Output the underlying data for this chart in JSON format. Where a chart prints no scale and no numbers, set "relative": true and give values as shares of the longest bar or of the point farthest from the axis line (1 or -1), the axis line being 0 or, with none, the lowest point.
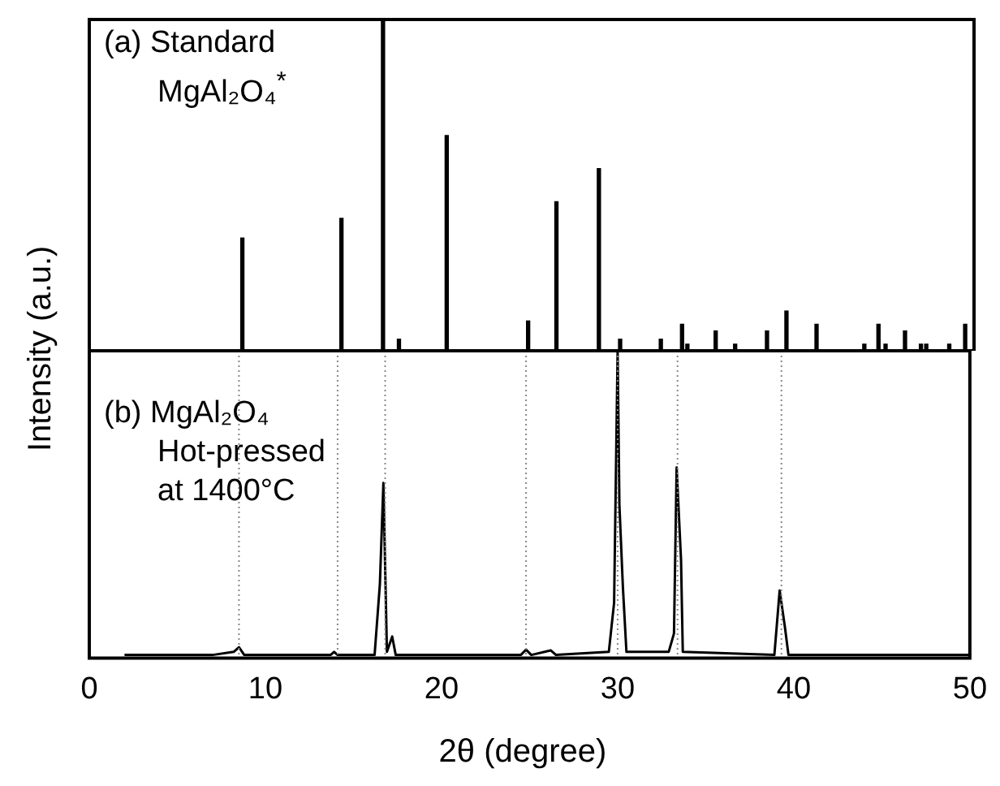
{
  "chart_data": [
    {
      "type": "bar",
      "relative": true,
      "xlim": [
        0,
        50
      ],
      "tick_labels": false,
      "grid": false,
      "legend": false,
      "ylabel": "Intensity (a.u.)",
      "color": "#000000",
      "annotations": [
        "(a) Standard",
        "MgAl₂O₄$^{*}$"
      ],
      "x": [
        8.65,
        14.25,
        16.6,
        17.5,
        20.2,
        24.8,
        26.4,
        28.8,
        30.0,
        32.3,
        33.5,
        33.8,
        35.4,
        36.5,
        38.3,
        39.4,
        41.1,
        43.8,
        44.6,
        45.0,
        46.1,
        47.0,
        47.3,
        48.6,
        49.5
      ],
      "values": [
        0.34,
        0.4,
        1,
        0.035,
        0.65,
        0.09,
        0.45,
        0.55,
        0.035,
        0.035,
        0.08,
        0.02,
        0.06,
        0.02,
        0.06,
        0.12,
        0.08,
        0.02,
        0.08,
        0.02,
        0.06,
        0.02,
        0.02,
        0.02,
        0.08
      ]
    },
    {
      "type": "line",
      "relative": true,
      "xlim": [
        0,
        50
      ],
      "xticks": [
        0,
        10,
        20,
        30,
        40,
        50
      ],
      "tick_labels": "x",
      "grid": false,
      "legend": false,
      "xlabel": "2θ (degree)",
      "color": "#000000",
      "marker": "none",
      "line_style": "solid",
      "annotations": [
        "(b) MgAl₂O₄",
        "Hot-pressed",
        "at 1400°C"
      ],
      "ref_lines": [
        {
          "axis": "x",
          "value": 8.5,
          "label": null,
          "color": "#888888",
          "line_style": "dotted"
        },
        {
          "axis": "x",
          "value": 14.1,
          "label": null,
          "color": "#888888",
          "line_style": "dotted"
        },
        {
          "axis": "x",
          "value": 16.8,
          "label": null,
          "color": "#888888",
          "line_style": "dotted"
        },
        {
          "axis": "x",
          "value": 24.8,
          "label": null,
          "color": "#888888",
          "line_style": "dotted"
        },
        {
          "axis": "x",
          "value": 30.0,
          "label": null,
          "color": "#888888",
          "line_style": "dotted"
        },
        {
          "axis": "x",
          "value": 33.4,
          "label": null,
          "color": "#888888",
          "line_style": "dotted"
        },
        {
          "axis": "x",
          "value": 39.3,
          "label": null,
          "color": "#888888",
          "line_style": "dotted"
        }
      ],
      "x": [
        2,
        7,
        8.2,
        8.5,
        8.8,
        13.7,
        13.9,
        14.1,
        16.2,
        16.5,
        16.7,
        16.9,
        17.2,
        17.4,
        17.8,
        24.5,
        24.8,
        25.1,
        26.2,
        26.5,
        29.5,
        29.8,
        30.0,
        30.1,
        30.3,
        30.5,
        32.9,
        33.2,
        33.35,
        33.6,
        33.7,
        38.9,
        39.2,
        39.5,
        39.7,
        40.5,
        45,
        50
      ],
      "values": [
        0.01,
        0.01,
        0.02,
        0.035,
        0.01,
        0.01,
        0.02,
        0.01,
        0.01,
        0.24,
        0.57,
        0.02,
        0.07,
        0.01,
        0.01,
        0.01,
        0.027,
        0.01,
        0.025,
        0.01,
        0.02,
        0.18,
        1,
        0.5,
        0.23,
        0.02,
        0.02,
        0.08,
        0.62,
        0.32,
        0.02,
        0.01,
        0.22,
        0.1,
        0.01,
        0.01,
        0.01,
        0.01
      ]
    }
  ]
}
